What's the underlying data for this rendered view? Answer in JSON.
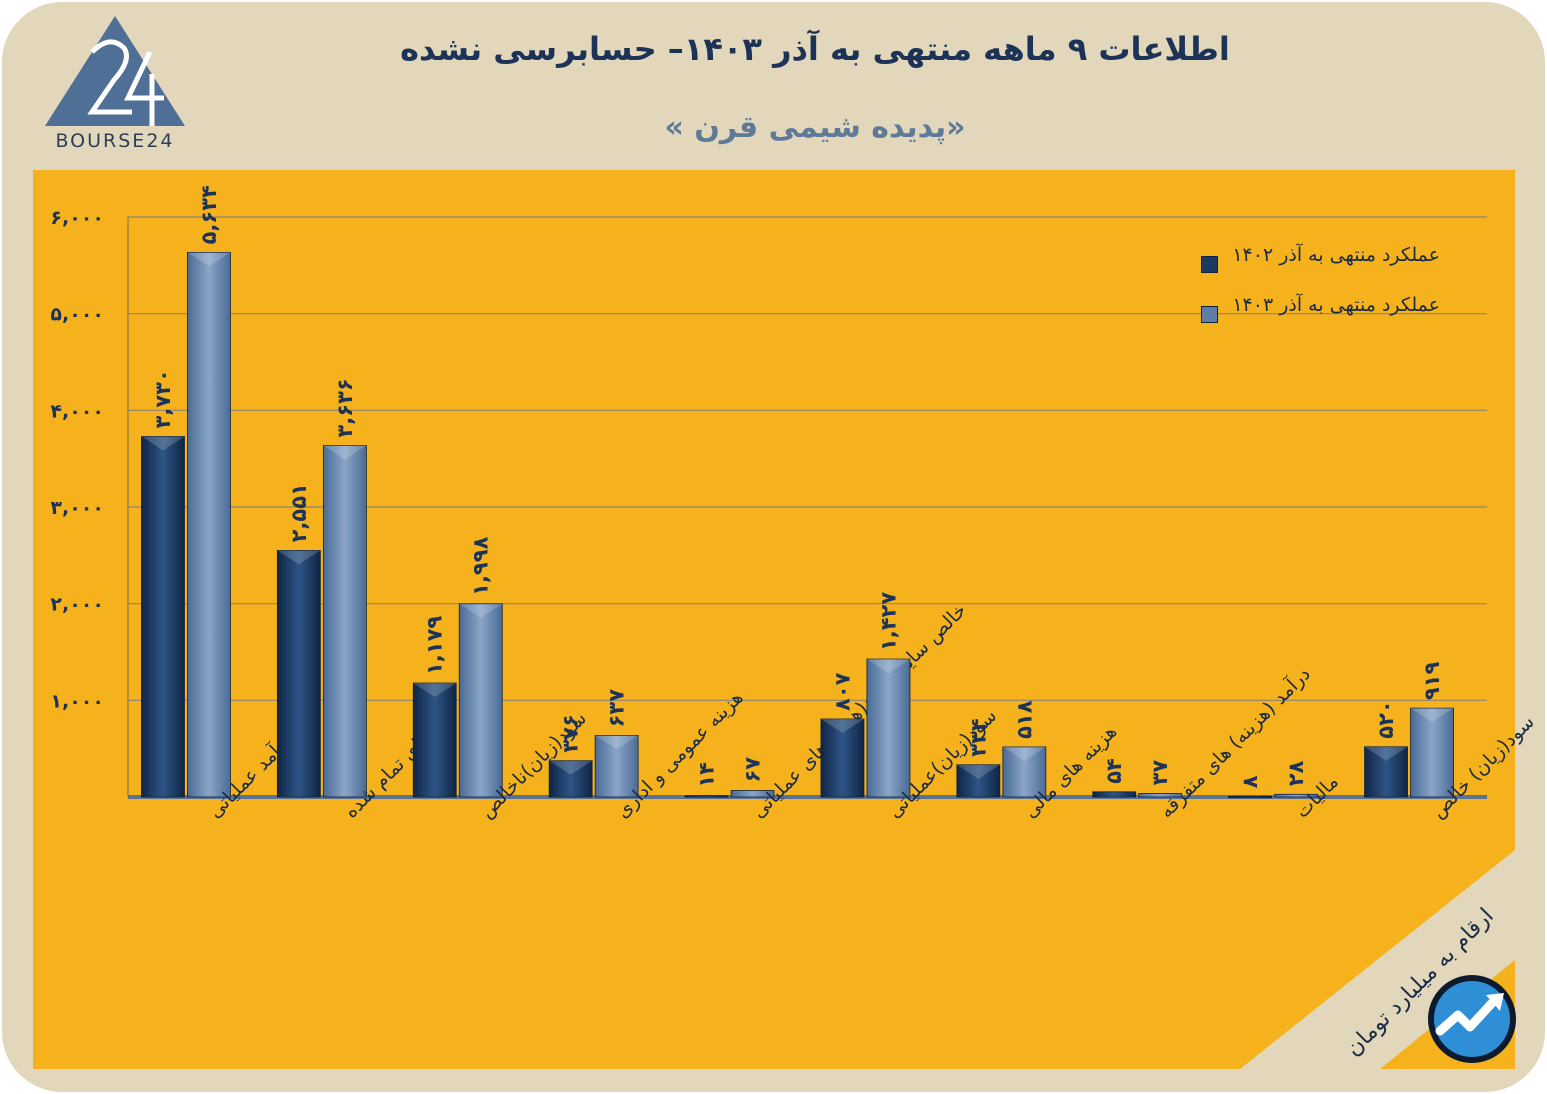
{
  "header": {
    "logo_text": "BOURSE24",
    "title": "اطلاعات ۹ ماهه منتهی به آذر  ۱۴۰۳– حسابرسی نشده",
    "subtitle": "«پدیده شیمی قرن »"
  },
  "footer": {
    "unit_note": "ارقام به میلیارد تومان"
  },
  "colors": {
    "background": "#e2d7bb",
    "panel": "#f5b21c",
    "series_1402": "#1b3a63",
    "series_1403": "#5e7ea8",
    "text_dark": "#1c3357"
  },
  "chart_data": {
    "type": "bar",
    "title": "اطلاعات ۹ ماهه منتهی به آذر  ۱۴۰۳– حسابرسی نشده",
    "xlabel": "",
    "ylabel": "",
    "ylim": [
      0,
      6000
    ],
    "grid": true,
    "legend_position": "top-right",
    "yticks": [
      {
        "value": 1000,
        "label": "۱,۰۰۰"
      },
      {
        "value": 2000,
        "label": "۲,۰۰۰"
      },
      {
        "value": 3000,
        "label": "۳,۰۰۰"
      },
      {
        "value": 4000,
        "label": "۴,۰۰۰"
      },
      {
        "value": 5000,
        "label": "۵,۰۰۰"
      },
      {
        "value": 6000,
        "label": "۶,۰۰۰"
      }
    ],
    "categories": [
      "درآمد عملیاتی",
      "بهای تمام شده",
      "سود(زیان)ناخالص",
      "هزینه عمومی و اداری",
      "خالص سایر درامد(هزینه)های عملیاتی",
      "سود(زیان)عملیاتی",
      "هزینه های مالی",
      "درآمد (هزینه) های متفرقه",
      "مالیات",
      "سود(زیان) خالص"
    ],
    "series": [
      {
        "name": "عملکرد منتهی به آذر ۱۴۰۲",
        "values": [
          3730,
          2551,
          1179,
          376,
          14,
          807,
          334,
          54,
          8,
          520
        ],
        "labels": [
          "۳,۷۳۰",
          "۲,۵۵۱",
          "۱,۱۷۹",
          "۳۷۶",
          "۱۴",
          "۸۰۷",
          "۳۳۴",
          "۵۴",
          "۸",
          "۵۲۰"
        ]
      },
      {
        "name": "عملکرد منتهی به آذر ۱۴۰۳",
        "values": [
          5634,
          3636,
          1998,
          637,
          67,
          1427,
          518,
          37,
          28,
          919
        ],
        "labels": [
          "۵,۶۳۴",
          "۳,۶۳۶",
          "۱,۹۹۸",
          "۶۳۷",
          "۶۷",
          "۱,۴۲۷",
          "۵۱۸",
          "۳۷",
          "۲۸",
          "۹۱۹"
        ]
      }
    ]
  }
}
